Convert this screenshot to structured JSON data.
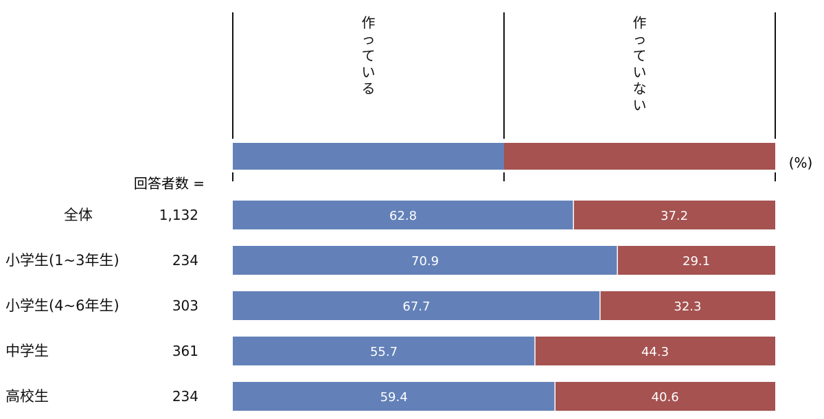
{
  "chart_data": {
    "type": "bar",
    "stacked": true,
    "orientation": "horizontal",
    "unit": "(%)",
    "respondents_label": "回答者数 =",
    "legend_items": [
      {
        "name": "作っている",
        "color": "#6381b8"
      },
      {
        "name": "作っていない",
        "color": "#a55250"
      }
    ],
    "categories": [
      "全体",
      "小学生(1~3年生)",
      "小学生(4~6年生)",
      "中学生",
      "高校生"
    ],
    "counts": [
      "1,132",
      "234",
      "303",
      "361",
      "234"
    ],
    "series": [
      {
        "name": "作っている",
        "color": "#6381b8",
        "values": [
          62.8,
          70.9,
          67.7,
          55.7,
          59.4
        ]
      },
      {
        "name": "作っていない",
        "color": "#a55250",
        "values": [
          37.2,
          29.1,
          32.3,
          44.3,
          40.6
        ]
      }
    ],
    "value_labels": [
      [
        "62.8",
        "37.2"
      ],
      [
        "70.9",
        "29.1"
      ],
      [
        "67.7",
        "32.3"
      ],
      [
        "55.7",
        "44.3"
      ],
      [
        "59.4",
        "40.6"
      ]
    ],
    "xlim": [
      0,
      100
    ]
  }
}
